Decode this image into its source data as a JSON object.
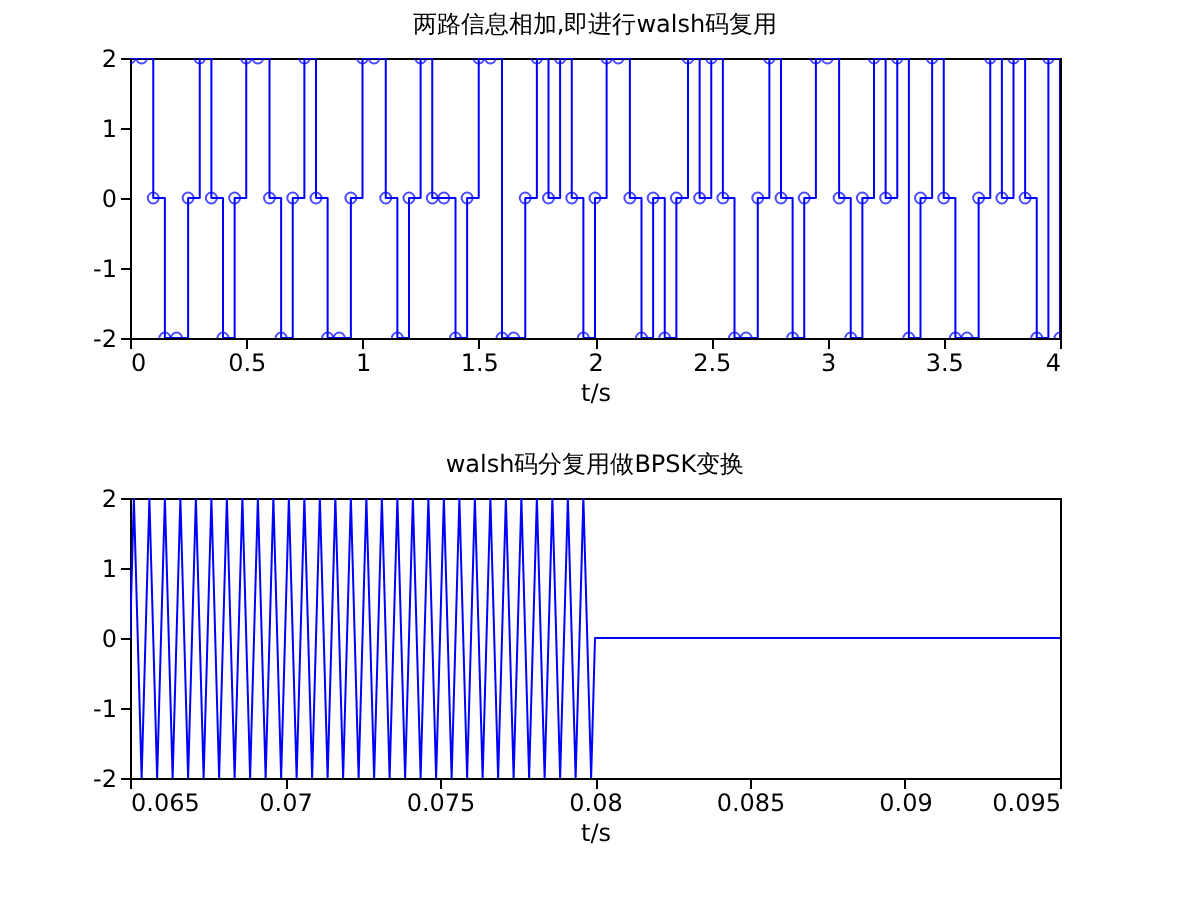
{
  "chart_data": [
    {
      "type": "step",
      "title": "两路信息相加,即进行walsh码复用",
      "xlabel": "t/s",
      "marker": "circle",
      "xlim": [
        0,
        4
      ],
      "ylim": [
        -2,
        2
      ],
      "xticks": [
        0,
        0.5,
        1,
        1.5,
        2,
        2.5,
        3,
        3.5,
        4
      ],
      "yticks": [
        -2,
        -1,
        0,
        1,
        2
      ],
      "series": [
        {
          "color": "#0000ff",
          "x": [
            0,
            0.05,
            0.1,
            0.15,
            0.2,
            0.25,
            0.3,
            0.35,
            0.4,
            0.45,
            0.5,
            0.55,
            0.6,
            0.65,
            0.7,
            0.75,
            0.8,
            0.85,
            0.9,
            0.95,
            1,
            1.05,
            1.1,
            1.15,
            1.2,
            1.25,
            1.3,
            1.35,
            1.4,
            1.45,
            1.5,
            1.55,
            1.6,
            1.65,
            1.7,
            1.75,
            1.8,
            1.85,
            1.9,
            1.95,
            2,
            2.05,
            2.1,
            2.15,
            2.2,
            2.25,
            2.3,
            2.35,
            2.4,
            2.45,
            2.5,
            2.55,
            2.6,
            2.65,
            2.7,
            2.75,
            2.8,
            2.85,
            2.9,
            2.95,
            3,
            3.05,
            3.1,
            3.15,
            3.2,
            3.25,
            3.3,
            3.35,
            3.4,
            3.45,
            3.5,
            3.55,
            3.6,
            3.65,
            3.7,
            3.75,
            3.8,
            3.85,
            3.9,
            3.95,
            4
          ],
          "values": [
            2,
            2,
            0,
            -2,
            -2,
            0,
            2,
            0,
            -2,
            0,
            2,
            2,
            0,
            -2,
            0,
            2,
            0,
            -2,
            -2,
            0,
            2,
            2,
            0,
            -2,
            0,
            2,
            0,
            0,
            -2,
            0,
            2,
            2,
            -2,
            -2,
            0,
            2,
            0,
            2,
            0,
            -2,
            0,
            2,
            2,
            0,
            -2,
            0,
            -2,
            0,
            2,
            0,
            2,
            0,
            -2,
            -2,
            0,
            2,
            0,
            -2,
            0,
            2,
            2,
            0,
            -2,
            0,
            2,
            0,
            2,
            -2,
            0,
            2,
            0,
            -2,
            -2,
            0,
            2,
            0,
            2,
            0,
            -2,
            2,
            -2
          ]
        }
      ]
    },
    {
      "type": "line",
      "title": "walsh码分复用做BPSK变换",
      "xlabel": "t/s",
      "xlim": [
        0.065,
        0.095
      ],
      "ylim": [
        -2,
        2
      ],
      "xticks": [
        0.065,
        0.07,
        0.075,
        0.08,
        0.085,
        0.09,
        0.095
      ],
      "yticks": [
        -2,
        -1,
        0,
        1,
        2
      ],
      "series": [
        {
          "color": "#0000ff",
          "x": [
            0.065,
            0.065125,
            0.065375,
            0.065625,
            0.065875,
            0.066125,
            0.066375,
            0.066625,
            0.066875,
            0.067125,
            0.067375,
            0.067625,
            0.067875,
            0.068125,
            0.068375,
            0.068625,
            0.068875,
            0.069125,
            0.069375,
            0.069625,
            0.069875,
            0.070125,
            0.070375,
            0.070625,
            0.070875,
            0.071125,
            0.071375,
            0.071625,
            0.071875,
            0.072125,
            0.072375,
            0.072625,
            0.072875,
            0.073125,
            0.073375,
            0.073625,
            0.073875,
            0.074125,
            0.074375,
            0.074625,
            0.074875,
            0.075125,
            0.075375,
            0.075625,
            0.075875,
            0.076125,
            0.076375,
            0.076625,
            0.076875,
            0.077125,
            0.077375,
            0.077625,
            0.077875,
            0.078125,
            0.078375,
            0.078625,
            0.078875,
            0.079125,
            0.079375,
            0.079625,
            0.079875,
            0.08,
            0.095
          ],
          "values": [
            0,
            2,
            -2,
            2,
            -2,
            2,
            -2,
            2,
            -2,
            2,
            -2,
            2,
            -2,
            2,
            -2,
            2,
            -2,
            2,
            -2,
            2,
            -2,
            2,
            -2,
            2,
            -2,
            2,
            -2,
            2,
            -2,
            2,
            -2,
            2,
            -2,
            2,
            -2,
            2,
            -2,
            2,
            -2,
            2,
            -2,
            2,
            -2,
            2,
            -2,
            2,
            -2,
            2,
            -2,
            2,
            -2,
            2,
            -2,
            2,
            -2,
            2,
            -2,
            2,
            -2,
            2,
            -2,
            0,
            0
          ]
        }
      ]
    }
  ]
}
